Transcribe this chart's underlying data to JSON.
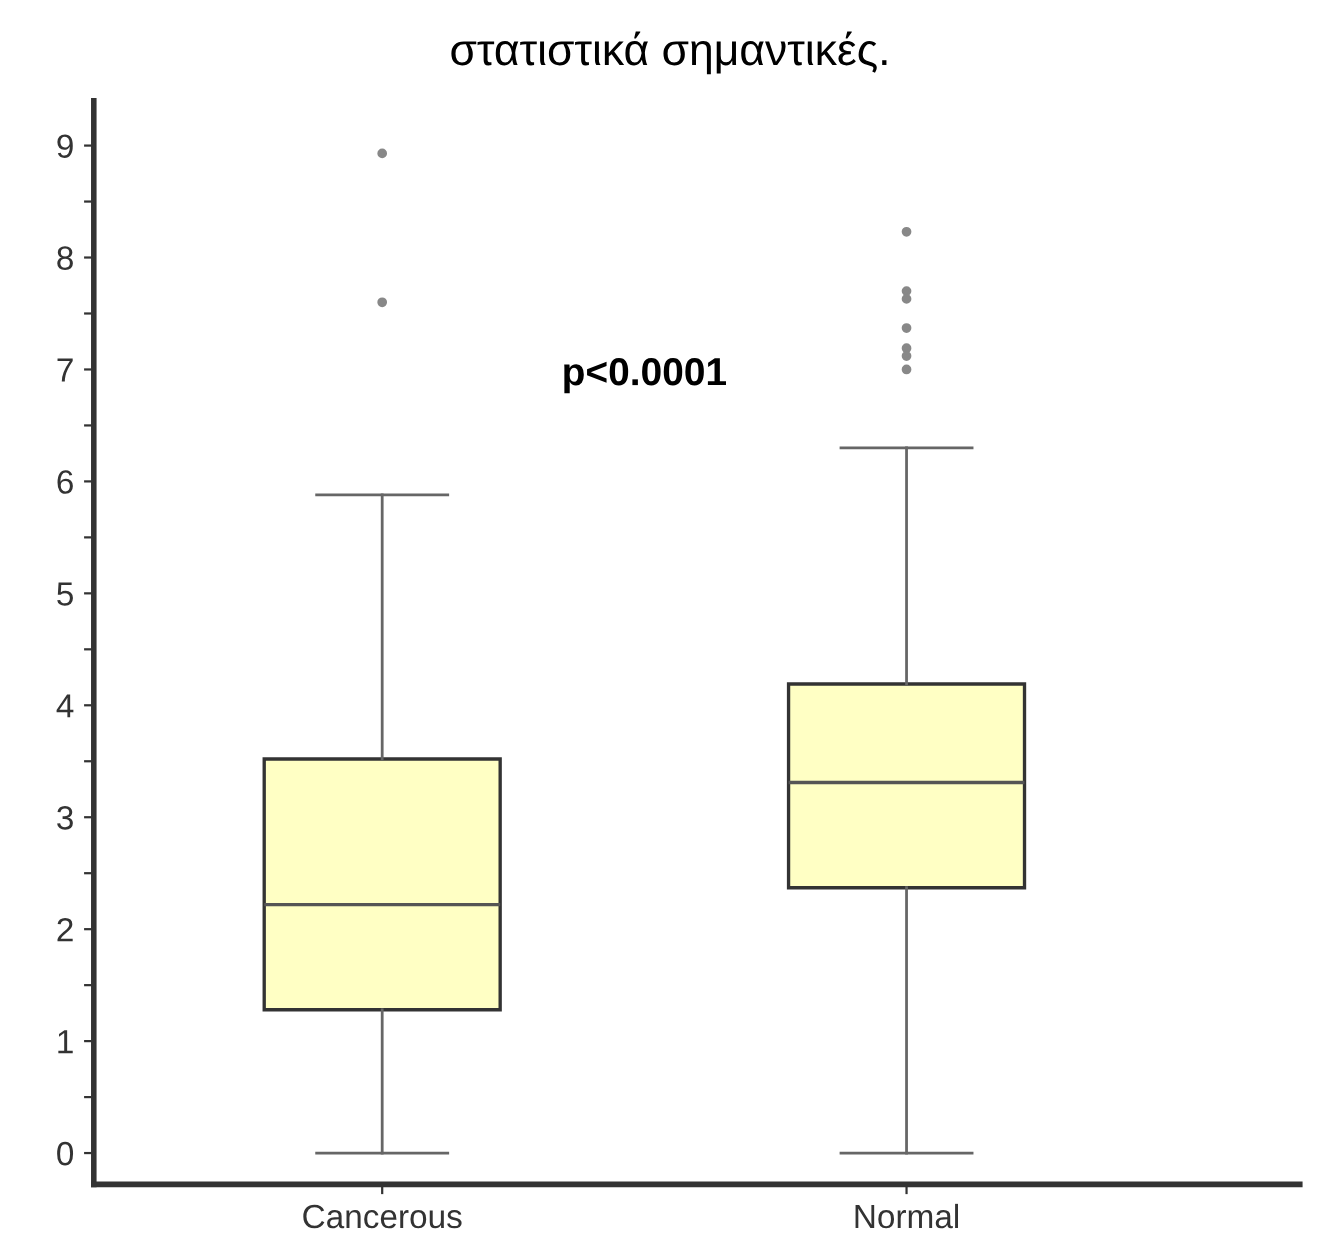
{
  "chart_data": {
    "type": "box",
    "title": "στατιστικά σημαντικές.",
    "categories": [
      "Cancerous",
      "Normal"
    ],
    "boxes": [
      {
        "low": 0,
        "q1": 1.28,
        "median": 2.22,
        "q3": 3.52,
        "high": 5.88,
        "outliers": [
          8.93,
          7.6
        ]
      },
      {
        "low": 0,
        "q1": 2.37,
        "median": 3.31,
        "q3": 4.19,
        "high": 6.3,
        "outliers": [
          8.23,
          7.7,
          7.63,
          7.37,
          7.19,
          7.12,
          7.0
        ]
      }
    ],
    "color": "#ffffc4",
    "annotations": [
      "p<0.0001"
    ],
    "ylim": [
      -0.28,
      9.4
    ],
    "yticks": [
      0,
      {
        "value": 0.5,
        "label": null
      },
      1,
      {
        "value": 1.5,
        "label": null
      },
      2,
      {
        "value": 2.5,
        "label": null
      },
      3,
      {
        "value": 3.5,
        "label": null
      },
      4,
      {
        "value": 4.5,
        "label": null
      },
      5,
      {
        "value": 5.5,
        "label": null
      },
      6,
      {
        "value": 6.5,
        "label": null
      },
      7,
      {
        "value": 7.5,
        "label": null
      },
      8,
      {
        "value": 8.5,
        "label": null
      },
      9
    ],
    "grid": false
  }
}
